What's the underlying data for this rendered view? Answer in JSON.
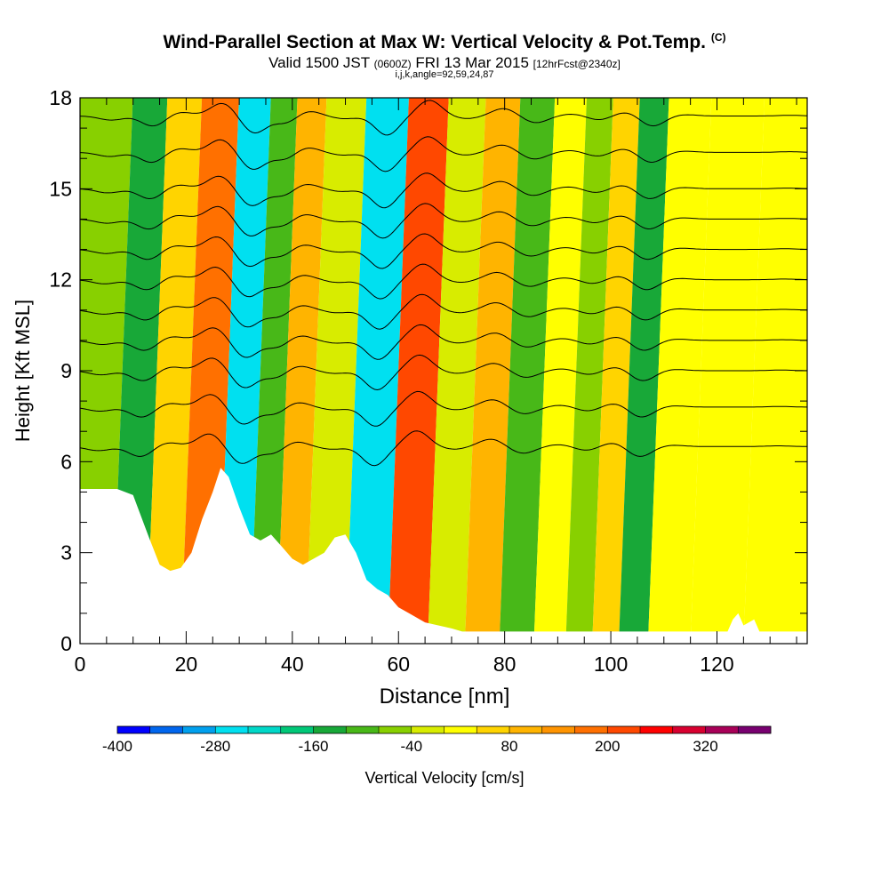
{
  "header": {
    "title": "Wind-Parallel Section at Max W: Vertical Velocity & Pot.Temp.",
    "title_tag": "(C)",
    "valid_prefix": "Valid 1500 JST",
    "valid_utc": "(0600Z)",
    "valid_date": "FRI 13 Mar 2015",
    "forecast": "[12hrFcst@2340z]",
    "indices": "i,j,k,angle=92,59,24,87"
  },
  "chart_data": {
    "type": "heatmap",
    "title": "Wind-Parallel Section at Max W: Vertical Velocity & Pot.Temp.",
    "xlabel": "Distance [nm]",
    "ylabel": "Height [Kft MSL]",
    "xlim": [
      0,
      137
    ],
    "ylim": [
      0,
      18
    ],
    "x_ticks": [
      0,
      20,
      40,
      60,
      80,
      100,
      120
    ],
    "y_ticks": [
      0,
      3,
      6,
      9,
      12,
      15,
      18
    ],
    "colorbar": {
      "label": "Vertical Velocity [cm/s]",
      "min": -400,
      "max": 400,
      "step": 40,
      "tick_labels": [
        "-400",
        "-280",
        "-160",
        "-40",
        "80",
        "200",
        "320"
      ],
      "tick_values": [
        -400,
        -280,
        -160,
        -40,
        80,
        200,
        320
      ],
      "colors": [
        "#0000ff",
        "#0066ee",
        "#00a0ee",
        "#00e0f0",
        "#00d8c8",
        "#00c878",
        "#18a838",
        "#48b818",
        "#88d000",
        "#d8ec00",
        "#ffff00",
        "#ffd400",
        "#ffb400",
        "#ff9400",
        "#ff7000",
        "#ff4800",
        "#ff0000",
        "#d80030",
        "#a80058",
        "#780070"
      ]
    },
    "velocity_bands": [
      {
        "center": 2,
        "w": -60
      },
      {
        "center": 10,
        "w": -150
      },
      {
        "center": 15,
        "w": 60
      },
      {
        "center": 23,
        "w": 190
      },
      {
        "center": 29,
        "w": -250
      },
      {
        "center": 35,
        "w": -110
      },
      {
        "center": 39,
        "w": 80
      },
      {
        "center": 46,
        "w": -40
      },
      {
        "center": 54,
        "w": -280
      },
      {
        "center": 62,
        "w": 230
      },
      {
        "center": 69,
        "w": -40
      },
      {
        "center": 76,
        "w": 110
      },
      {
        "center": 82,
        "w": -100
      },
      {
        "center": 89,
        "w": 30
      },
      {
        "center": 94,
        "w": -60
      },
      {
        "center": 99,
        "w": 60
      },
      {
        "center": 104,
        "w": -150
      },
      {
        "center": 110,
        "w": 20
      },
      {
        "center": 120,
        "w": 0
      },
      {
        "center": 130,
        "w": 10
      }
    ],
    "potential_temperature_contours": {
      "base_heights_kft": [
        6.5,
        7.8,
        9.0,
        10.0,
        11.0,
        12.0,
        13.0,
        14.0,
        15.0,
        16.2,
        17.4
      ]
    },
    "terrain_kft": [
      [
        0,
        5.1
      ],
      [
        4,
        5.1
      ],
      [
        7,
        5.1
      ],
      [
        10,
        4.9
      ],
      [
        13,
        3.5
      ],
      [
        15,
        2.6
      ],
      [
        17,
        2.4
      ],
      [
        19,
        2.5
      ],
      [
        21,
        3.0
      ],
      [
        23,
        4.1
      ],
      [
        25,
        5.0
      ],
      [
        26.5,
        5.8
      ],
      [
        28,
        5.5
      ],
      [
        30,
        4.5
      ],
      [
        32,
        3.6
      ],
      [
        34,
        3.4
      ],
      [
        36,
        3.6
      ],
      [
        38,
        3.2
      ],
      [
        40,
        2.8
      ],
      [
        42,
        2.6
      ],
      [
        44,
        2.8
      ],
      [
        46,
        3.0
      ],
      [
        48,
        3.5
      ],
      [
        50,
        3.6
      ],
      [
        52,
        3.0
      ],
      [
        54,
        2.1
      ],
      [
        56,
        1.8
      ],
      [
        58,
        1.6
      ],
      [
        60,
        1.2
      ],
      [
        62,
        1.0
      ],
      [
        65,
        0.7
      ],
      [
        70,
        0.5
      ],
      [
        72,
        0.4
      ],
      [
        80,
        0.4
      ],
      [
        100,
        0.4
      ],
      [
        122,
        0.4
      ],
      [
        123,
        0.8
      ],
      [
        124,
        1.0
      ],
      [
        125,
        0.6
      ],
      [
        127,
        0.8
      ],
      [
        128,
        0.4
      ],
      [
        137,
        0.4
      ]
    ]
  }
}
